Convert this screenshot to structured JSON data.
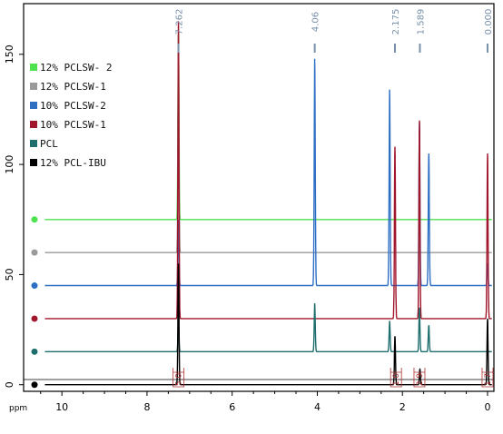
{
  "chart_data": {
    "type": "line",
    "x_unit_label": "ppm",
    "x_ticks": [
      10,
      8,
      6,
      4,
      2,
      0
    ],
    "y_ticks": [
      0,
      50,
      100,
      150
    ],
    "xlim": [
      10.9,
      -0.15
    ],
    "ylim": [
      -3,
      173
    ],
    "peak_labels": [
      {
        "text": "7.262",
        "ppm": 7.262
      },
      {
        "text": "4.06",
        "ppm": 4.06
      },
      {
        "text": "2.175",
        "ppm": 2.175
      },
      {
        "text": "1.589",
        "ppm": 1.589
      },
      {
        "text": "0.000",
        "ppm": 0.0
      }
    ],
    "integrals": [
      {
        "text": "5.0",
        "ppm": 7.26
      },
      {
        "text": "1.0",
        "ppm": 2.15
      },
      {
        "text": "2.9",
        "ppm": 1.6
      },
      {
        "text": "1.7",
        "ppm": 0.0
      }
    ],
    "series": [
      {
        "name": "12% PCLSW- 2",
        "color": "#4fe24f",
        "offset": 75,
        "peaks": [
          [
            7.262,
            85
          ],
          [
            4.06,
            0
          ],
          [
            2.3,
            0
          ],
          [
            1.6,
            0
          ],
          [
            1.38,
            0
          ],
          [
            0.0,
            0
          ]
        ]
      },
      {
        "name": "12% PCLSW-1",
        "color": "#9a9a9a",
        "offset": 60,
        "peaks": [
          [
            7.262,
            90
          ],
          [
            4.06,
            0
          ],
          [
            2.3,
            0
          ],
          [
            1.6,
            0
          ],
          [
            1.38,
            0
          ],
          [
            0.0,
            0
          ]
        ]
      },
      {
        "name": "10% PCLSW-2",
        "color": "#2e6fc4",
        "offset": 45,
        "peaks": [
          [
            7.262,
            30
          ],
          [
            4.06,
            103
          ],
          [
            2.3,
            89
          ],
          [
            1.6,
            74
          ],
          [
            1.38,
            60
          ],
          [
            0.0,
            10
          ]
        ]
      },
      {
        "name": "10% PCLSW-1",
        "color": "#a0162c",
        "offset": 30,
        "peaks": [
          [
            7.262,
            135
          ],
          [
            4.06,
            0
          ],
          [
            2.175,
            78
          ],
          [
            1.6,
            90
          ],
          [
            1.38,
            0
          ],
          [
            0.0,
            75
          ]
        ]
      },
      {
        "name": "PCL",
        "color": "#1f6e6e",
        "offset": 15,
        "peaks": [
          [
            7.262,
            12
          ],
          [
            4.06,
            22
          ],
          [
            2.3,
            14
          ],
          [
            1.6,
            20
          ],
          [
            1.38,
            12
          ],
          [
            0.0,
            0
          ]
        ]
      },
      {
        "name": "12% PCL-IBU",
        "color": "#000000",
        "offset": 0,
        "peaks": [
          [
            7.262,
            55
          ],
          [
            4.06,
            0
          ],
          [
            2.175,
            22
          ],
          [
            1.589,
            7
          ],
          [
            1.38,
            0
          ],
          [
            0.0,
            30
          ]
        ]
      }
    ]
  }
}
